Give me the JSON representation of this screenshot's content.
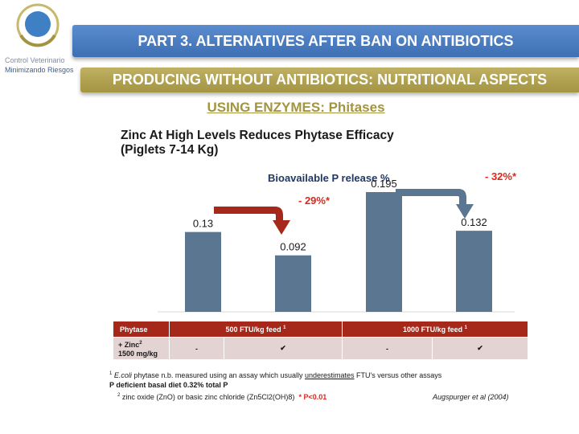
{
  "logo": {
    "line1": "Control Veterinario",
    "line2": "Minimizando Riesgos"
  },
  "banner_part": "PART 3. ALTERNATIVES AFTER BAN ON ANTIBIOTICS",
  "banner_topic": "PRODUCING WITHOUT ANTIBIOTICS: NUTRITIONAL ASPECTS",
  "subtitle": "USING ENZYMES:  Phitases",
  "chart_data": {
    "type": "bar",
    "title": "Zinc At High Levels Reduces Phytase Efficacy",
    "subtitle": "(Piglets 7-14 Kg)",
    "series_label": "Bioavailable P release %",
    "values": [
      0.13,
      0.092,
      0.195,
      0.132
    ],
    "value_labels": [
      "0.13",
      "0.092",
      "0.195",
      "0.132"
    ],
    "ylim": [
      0,
      0.24
    ],
    "bar_color": "#5a7690",
    "annotations": [
      "- 29%*",
      "- 32%*"
    ],
    "arrow_colors": [
      "#a6281b",
      "#5a7690"
    ],
    "grid": false
  },
  "table": {
    "header": [
      "Phytase",
      "500 FTU/kg feed",
      "1000 FTU/kg feed"
    ],
    "header_sup": "1",
    "row_label_1": "+ Zinc",
    "row_label_sup": "2",
    "row_label_2": "1500 mg/kg",
    "cells": [
      "-",
      "✔",
      "-",
      "✔"
    ]
  },
  "footnotes": {
    "n1_sup": "1",
    "n1_ital": "E.coli",
    "n1_text_a": " phytase n.b. measured using an assay which usually ",
    "n1_underlined": "underestimates",
    "n1_text_b": " FTU's versus other assays",
    "basal": "P deficient basal diet 0.32% total  P",
    "n2_sup": "2",
    "n2_text": " zinc oxide (ZnO) or basic zinc chloride (Zn5Cl2(OH)8)",
    "significance": "* P<0.01",
    "citation": "Augspurger et al (2004)"
  },
  "colors": {
    "banner_blue": "#4a7cc2",
    "banner_olive": "#b1a352",
    "accent_red": "#e0261b",
    "table_header": "#a6281b",
    "table_body": "#e4d3d3"
  }
}
